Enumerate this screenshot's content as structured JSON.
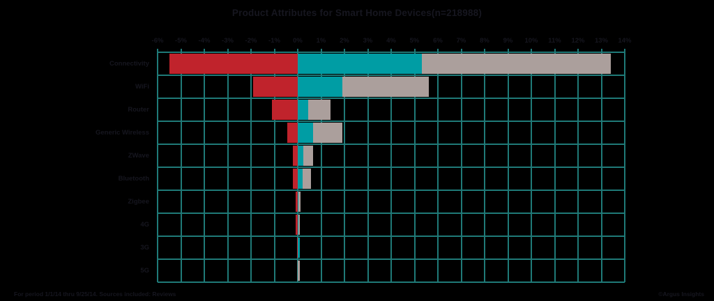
{
  "title": "Product Attributes for Smart Home Devices(n=218988)",
  "footer": {
    "left": "For period 1/1/14 thru 9/25/14. Sources included: Reviews",
    "right": "©Argus Insights"
  },
  "colors": {
    "background": "#000000",
    "text": "#16161f",
    "grid": "#1f7a78",
    "negative": "#c0232c",
    "positive": "#009da4",
    "neutral": "#ab9f9c"
  },
  "chart_data": {
    "type": "bar",
    "orientation": "horizontal",
    "stacked": true,
    "diverging": true,
    "title": "Product Attributes for Smart Home Devices(n=218988)",
    "categories": [
      "Connectivity",
      "WiFi",
      "Router",
      "Generic Wireless",
      "ZWave",
      "Bluetooth",
      "Zigbee",
      "4G",
      "3G",
      "5G"
    ],
    "series": [
      {
        "name": "negative",
        "color": "#c0232c",
        "values": [
          -5.5,
          -1.9,
          -1.1,
          -0.45,
          -0.2,
          -0.2,
          -0.1,
          -0.1,
          -0.03,
          0
        ]
      },
      {
        "name": "positive",
        "color": "#009da4",
        "values": [
          5.3,
          1.9,
          0.45,
          0.65,
          0.25,
          0.2,
          0.03,
          0.02,
          0.08,
          0
        ]
      },
      {
        "name": "neutral",
        "color": "#ab9f9c",
        "values": [
          8.1,
          3.7,
          0.95,
          1.25,
          0.4,
          0.37,
          0.1,
          0.08,
          0,
          0.1
        ]
      }
    ],
    "xlabel": "",
    "ylabel": "",
    "xlim": [
      -6,
      14
    ],
    "tick_step": 1,
    "tick_format": "percent",
    "grid": true,
    "legend": "none"
  }
}
